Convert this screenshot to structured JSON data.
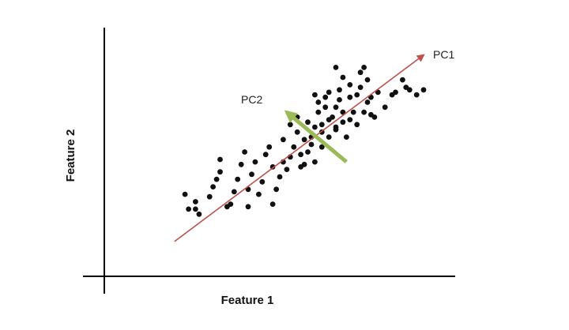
{
  "chart_data": {
    "type": "scatter",
    "title": "",
    "xlabel": "Feature 1",
    "ylabel": "Feature 2",
    "xlim": [
      0,
      100
    ],
    "ylim": [
      0,
      100
    ],
    "grid": false,
    "legend": "none",
    "colors": {
      "points": "#111111",
      "pc1": "#c0504d",
      "pc2": "#9bbb59",
      "axes": "#000000"
    },
    "points": [
      [
        23,
        33
      ],
      [
        24,
        27
      ],
      [
        26,
        30
      ],
      [
        27,
        25
      ],
      [
        30,
        32
      ],
      [
        31,
        36
      ],
      [
        32,
        39
      ],
      [
        33,
        42
      ],
      [
        33,
        47
      ],
      [
        36,
        29
      ],
      [
        37,
        34
      ],
      [
        38,
        39
      ],
      [
        39,
        45
      ],
      [
        40,
        50
      ],
      [
        41,
        35
      ],
      [
        41,
        28
      ],
      [
        42,
        41
      ],
      [
        43,
        46
      ],
      [
        44,
        33
      ],
      [
        45,
        38
      ],
      [
        46,
        49
      ],
      [
        47,
        52
      ],
      [
        48,
        29
      ],
      [
        48,
        44
      ],
      [
        49,
        35
      ],
      [
        50,
        40
      ],
      [
        51,
        46
      ],
      [
        51,
        55
      ],
      [
        52,
        43
      ],
      [
        53,
        48
      ],
      [
        53,
        61
      ],
      [
        54,
        52
      ],
      [
        55,
        58
      ],
      [
        55,
        64
      ],
      [
        56,
        44
      ],
      [
        56,
        49
      ],
      [
        57,
        45
      ],
      [
        57,
        55
      ],
      [
        58,
        50
      ],
      [
        58,
        62
      ],
      [
        59,
        53
      ],
      [
        59,
        56
      ],
      [
        60,
        46
      ],
      [
        60,
        60
      ],
      [
        60,
        73
      ],
      [
        61,
        66
      ],
      [
        61,
        70
      ],
      [
        62,
        52
      ],
      [
        62,
        58
      ],
      [
        62,
        61
      ],
      [
        63,
        68
      ],
      [
        63,
        72
      ],
      [
        64,
        56
      ],
      [
        64,
        63
      ],
      [
        64,
        74
      ],
      [
        65,
        64
      ],
      [
        66,
        59
      ],
      [
        66,
        68
      ],
      [
        66,
        84
      ],
      [
        66,
        60
      ],
      [
        67,
        71
      ],
      [
        67,
        75
      ],
      [
        68,
        62
      ],
      [
        68,
        66
      ],
      [
        68,
        80
      ],
      [
        69,
        56
      ],
      [
        70,
        72
      ],
      [
        70,
        77
      ],
      [
        70,
        63
      ],
      [
        71,
        66
      ],
      [
        72,
        61
      ],
      [
        72,
        73
      ],
      [
        73,
        76
      ],
      [
        73,
        82
      ],
      [
        74,
        66
      ],
      [
        74,
        84
      ],
      [
        75,
        70
      ],
      [
        75,
        79
      ],
      [
        76,
        65
      ],
      [
        76,
        72
      ],
      [
        77,
        64
      ],
      [
        78,
        74
      ],
      [
        80,
        68
      ],
      [
        82,
        73
      ],
      [
        83,
        74
      ],
      [
        85,
        79
      ],
      [
        86,
        76
      ],
      [
        87,
        75
      ],
      [
        89,
        73
      ],
      [
        91,
        75
      ],
      [
        26,
        27
      ],
      [
        35,
        28
      ]
    ],
    "annotations": [
      {
        "label": "PC1",
        "from": [
          20,
          14
        ],
        "to": [
          91,
          89
        ]
      },
      {
        "label": "PC2",
        "from": [
          69,
          46
        ],
        "to": [
          52,
          66
        ]
      }
    ]
  }
}
